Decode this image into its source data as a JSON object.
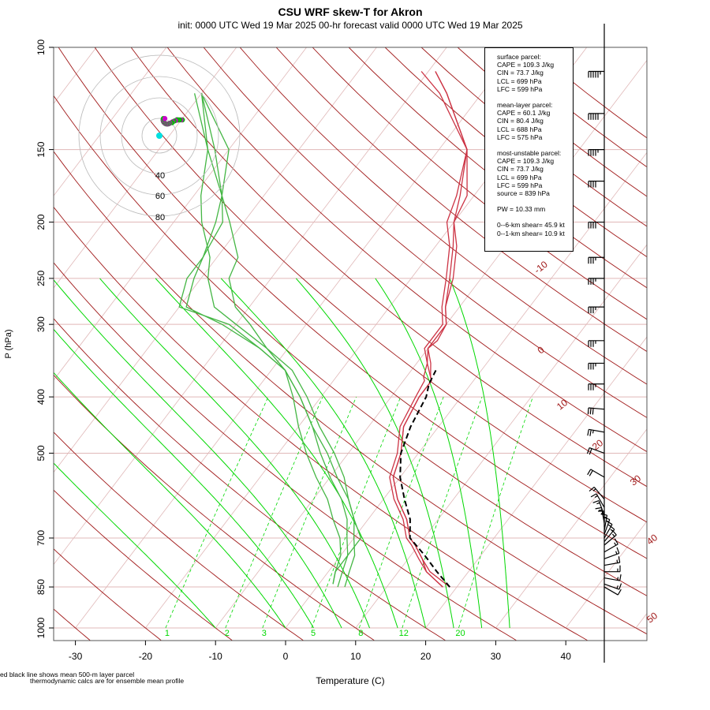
{
  "header": {
    "title": "CSU WRF skew-T for Akron",
    "subtitle": "init: 0000 UTC Wed 19 Mar 2025     00-hr forecast valid 0000 UTC Wed 19 Mar 2025"
  },
  "chart_data": {
    "type": "line",
    "title": "CSU WRF skew-T for Akron",
    "xlabel": "Temperature (C)",
    "ylabel": "P (hPa)",
    "x_ticks": [
      "-30",
      "-20",
      "-10",
      "0",
      "10",
      "20",
      "30",
      "40"
    ],
    "y_ticks": [
      "100",
      "150",
      "200",
      "250",
      "300",
      "400",
      "500",
      "700",
      "850",
      "1000"
    ],
    "y_tick_values": [
      100,
      150,
      200,
      250,
      300,
      400,
      500,
      700,
      850,
      1000
    ],
    "y_scale": "log",
    "xlim": [
      -33,
      52
    ],
    "ylim": [
      1000,
      100
    ],
    "isotherm_labels": [
      "-10",
      "0",
      "10",
      "20",
      "30",
      "40",
      "50"
    ],
    "mixing_ratio_labels": [
      "1",
      "2",
      "3",
      "5",
      "8",
      "12",
      "20"
    ],
    "hodograph_ring_labels": [
      "40",
      "60",
      "80"
    ],
    "colors": {
      "temperature": "#cc3344",
      "dewpoint": "#44b644",
      "parcel": "#000000",
      "isotherm": "#e0b8b8",
      "isobar": "#e0b8b8",
      "dry_adiabat": "#a01818",
      "moist_adiabat": "#00d800",
      "mixing_ratio": "#00d800",
      "hodograph": "#cc00cc",
      "hodograph_alt": "#00c000"
    },
    "series": [
      {
        "pressures": [
          850,
          800,
          760,
          720,
          700,
          650,
          600,
          550,
          500,
          450,
          400,
          375,
          370,
          350,
          330,
          320,
          300,
          280,
          250,
          220,
          200,
          180,
          150,
          120,
          110
        ],
        "values": [
          19,
          14.5,
          12,
          9.5,
          8,
          5.5,
          2,
          -1,
          -2.5,
          -5,
          -6,
          -6,
          -6.5,
          -8.5,
          -10,
          -9.5,
          -10,
          -12,
          -14,
          -17,
          -20,
          -21,
          -26,
          -36,
          -41
        ]
      },
      {
        "pressures": [
          850,
          800,
          760,
          720,
          700,
          650,
          600,
          550,
          500,
          450,
          400,
          375,
          370,
          350,
          330,
          320,
          300,
          280,
          250,
          220,
          200,
          180,
          150,
          120,
          110
        ],
        "values": [
          18,
          14,
          11.5,
          9,
          7.5,
          5,
          1.5,
          -1.5,
          -3,
          -5.5,
          -6.5,
          -7,
          -7.5,
          -8.5,
          -10.5,
          -10.5,
          -10.5,
          -12.5,
          -15,
          -18,
          -21,
          -22.5,
          -26,
          -35,
          -39
        ]
      },
      {
        "pressures": [
          850,
          800,
          760,
          720,
          700,
          650,
          600,
          550,
          500,
          450,
          400,
          375,
          370,
          350,
          330,
          320,
          300,
          280,
          250,
          220,
          200,
          180,
          150,
          120,
          110
        ],
        "values": [
          18,
          14,
          12,
          9.5,
          8,
          5.5,
          2,
          -1,
          -2.5,
          -5,
          -6,
          -6,
          -6.5,
          -8,
          -10,
          -10,
          -10,
          -12,
          -14.5,
          -17.5,
          -20,
          -22,
          -26,
          -35,
          -39
        ]
      },
      {
        "pressures": [
          840,
          800,
          750,
          700,
          650,
          600,
          550,
          500,
          450,
          400,
          360,
          330,
          300,
          280,
          250,
          230,
          200,
          180,
          150,
          120
        ],
        "values": [
          2,
          1,
          1,
          1,
          -2,
          -5,
          -9,
          -13,
          -18,
          -23,
          -28,
          -33,
          -38,
          -42,
          -46,
          -47,
          -52,
          -56,
          -63,
          -70
        ]
      },
      {
        "pressures": [
          850,
          800,
          750,
          700,
          650,
          600,
          550,
          500,
          450,
          400,
          360,
          330,
          300,
          280,
          250,
          230,
          200,
          180,
          150,
          120
        ],
        "values": [
          4,
          3,
          2,
          0,
          -2,
          -5,
          -8,
          -12,
          -17,
          -22,
          -27,
          -33,
          -40,
          -45,
          -49,
          -51,
          -56,
          -59,
          -63,
          -71
        ]
      },
      {
        "pressures": [
          840,
          800,
          750,
          700,
          650,
          600,
          550,
          500,
          450,
          400,
          360,
          330,
          300,
          280,
          250,
          230,
          200,
          180,
          150,
          120
        ],
        "values": [
          2,
          1,
          0,
          -2,
          -5,
          -8,
          -12,
          -16,
          -20,
          -24,
          -28,
          -34,
          -42,
          -49,
          -51,
          -52,
          -54,
          -56,
          -60,
          -70
        ]
      },
      {
        "pressures": [
          850,
          800,
          750,
          700,
          650,
          600,
          550,
          500,
          450,
          400,
          360,
          330,
          300,
          280,
          250,
          230,
          200,
          180,
          150,
          120
        ],
        "values": [
          3,
          2,
          1,
          -1,
          -3,
          -6,
          -10,
          -14,
          -18,
          -23,
          -28,
          -34,
          -41,
          -50,
          -52,
          -52,
          -53,
          -56,
          -62,
          -70
        ]
      },
      {
        "pressures": [
          850,
          800,
          750,
          700,
          650,
          600,
          550,
          500,
          450,
          400,
          380,
          360
        ],
        "values": [
          19,
          15.5,
          12,
          8,
          6,
          3,
          0,
          -2.5,
          -4,
          -5,
          -6,
          -6.5
        ]
      }
    ],
    "wind_barbs": {
      "pressures": [
        110,
        130,
        150,
        170,
        200,
        230,
        250,
        280,
        320,
        350,
        380,
        420,
        460,
        500,
        550,
        600,
        620,
        640,
        660,
        670,
        680,
        690,
        700,
        710,
        720,
        740,
        760,
        780,
        800,
        820,
        840,
        850
      ],
      "speed_kt": [
        55,
        50,
        45,
        40,
        40,
        35,
        35,
        35,
        35,
        35,
        35,
        30,
        25,
        20,
        20,
        15,
        15,
        15,
        15,
        15,
        15,
        15,
        15,
        15,
        15,
        15,
        15,
        15,
        15,
        15,
        15,
        10
      ],
      "direction_deg": [
        270,
        270,
        270,
        270,
        270,
        270,
        270,
        270,
        270,
        270,
        270,
        275,
        280,
        290,
        300,
        320,
        330,
        340,
        350,
        0,
        10,
        20,
        30,
        40,
        50,
        60,
        70,
        80,
        90,
        100,
        110,
        120
      ]
    }
  },
  "stats": {
    "surface_header": "surface parcel:",
    "surface_cape": "CAPE = 109.3 J/kg",
    "surface_cin": "CIN = 73.7 J/kg",
    "surface_lcl": "LCL = 699 hPa",
    "surface_lfc": "LFC = 599 hPa",
    "mean_header": "mean-layer parcel:",
    "mean_cape": "CAPE = 60.1 J/kg",
    "mean_cin": "CIN = 80.4 J/kg",
    "mean_lcl": "LCL = 688 hPa",
    "mean_lfc": "LFC = 575 hPa",
    "mu_header": "most-unstable parcel:",
    "mu_cape": "CAPE = 109.3 J/kg",
    "mu_cin": "CIN = 73.7 J/kg",
    "mu_lcl": "LCL = 699 hPa",
    "mu_lfc": "LFC = 599 hPa",
    "mu_source": "source = 839 hPa",
    "pw": "PW =  10.33 mm",
    "shear6": "0--6-km shear= 45.9 kt",
    "shear1": "0--1-km shear= 10.9 kt"
  },
  "notes": {
    "line1": "ed black line shows mean 500-m layer parcel",
    "line2": "thermodynamic calcs are for ensemble mean profile"
  }
}
